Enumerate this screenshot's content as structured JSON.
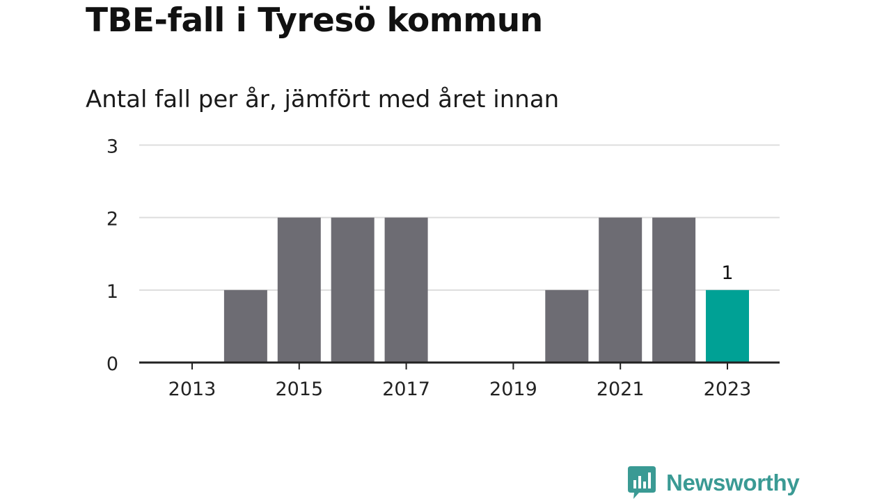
{
  "header": {
    "title": "TBE-fall i Tyresö kommun",
    "subtitle": "Antal fall per år, jämfört med året innan"
  },
  "brand": {
    "name": "Newsworthy",
    "color": "#3a9a94",
    "icon": "bar-chart-speech-bubble-icon"
  },
  "colors": {
    "bar": "#6d6c73",
    "highlight": "#00a195",
    "grid": "#dddddd",
    "axis": "#222222"
  },
  "chart_data": {
    "type": "bar",
    "title": "TBE-fall i Tyresö kommun",
    "subtitle": "Antal fall per år, jämfört med året innan",
    "categories": [
      "2013",
      "2014",
      "2015",
      "2016",
      "2017",
      "2018",
      "2019",
      "2020",
      "2021",
      "2022",
      "2023"
    ],
    "values": [
      0,
      1,
      2,
      2,
      2,
      0,
      0,
      1,
      2,
      2,
      1
    ],
    "x_tick_labels": [
      "2013",
      "2015",
      "2017",
      "2019",
      "2021",
      "2023"
    ],
    "y_ticks": [
      0,
      1,
      2,
      3
    ],
    "ylim": [
      0,
      3
    ],
    "grid": true,
    "highlight_category": "2023",
    "data_labels": [
      {
        "category": "2023",
        "text": "1"
      }
    ],
    "xlabel": "",
    "ylabel": ""
  }
}
